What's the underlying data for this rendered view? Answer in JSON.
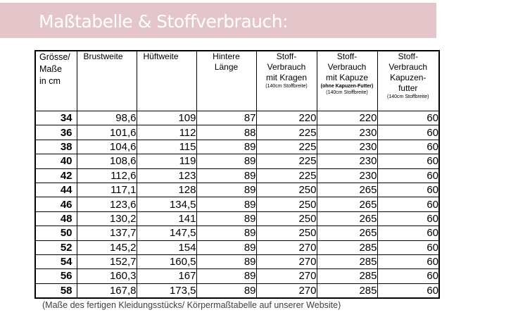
{
  "title": "Maßtabelle & Stoffverbrauch:",
  "colors": {
    "banner": "#e4c5c9"
  },
  "headers": [
    {
      "lines": [
        "Grösse/",
        "Maße",
        "in cm"
      ]
    },
    {
      "lines": [
        "Brustweite"
      ]
    },
    {
      "lines": [
        "Hüftweite"
      ]
    },
    {
      "lines": [
        "Hintere",
        "Länge"
      ]
    },
    {
      "lines": [
        "Stoff-",
        "Verbrauch",
        "mit Kragen"
      ],
      "note": "(140cm Stoffbreite)"
    },
    {
      "lines": [
        "Stoff-",
        "Verbrauch",
        "mit Kapuze"
      ],
      "note_bold": "(ohne Kapuzen-Futter)",
      "note": "(140cm Stoffbreite)"
    },
    {
      "lines": [
        "Stoff-",
        "Verbrauch",
        "Kapuzen-",
        "futter"
      ],
      "note": "(140cm Stoffbreite)"
    }
  ],
  "rows": [
    [
      "34",
      "98,6",
      "109",
      "87",
      "220",
      "220",
      "60"
    ],
    [
      "36",
      "101,6",
      "112",
      "88",
      "225",
      "230",
      "60"
    ],
    [
      "38",
      "104,6",
      "115",
      "89",
      "225",
      "230",
      "60"
    ],
    [
      "40",
      "108,6",
      "119",
      "89",
      "225",
      "230",
      "60"
    ],
    [
      "42",
      "112,6",
      "123",
      "89",
      "225",
      "230",
      "60"
    ],
    [
      "44",
      "117,1",
      "128",
      "89",
      "250",
      "265",
      "60"
    ],
    [
      "46",
      "123,6",
      "134,5",
      "89",
      "250",
      "265",
      "60"
    ],
    [
      "48",
      "130,2",
      "141",
      "89",
      "250",
      "265",
      "60"
    ],
    [
      "50",
      "137,7",
      "147,5",
      "89",
      "250",
      "265",
      "60"
    ],
    [
      "52",
      "145,2",
      "154",
      "89",
      "270",
      "285",
      "60"
    ],
    [
      "54",
      "152,7",
      "160,5",
      "89",
      "270",
      "285",
      "60"
    ],
    [
      "56",
      "160,3",
      "167",
      "89",
      "270",
      "285",
      "60"
    ],
    [
      "58",
      "167,8",
      "173,5",
      "89",
      "270",
      "285",
      "60"
    ]
  ],
  "footnote": "(Maße des fertigen Kleidungsstücks/ Körpermaßtabelle auf unserer Website)"
}
